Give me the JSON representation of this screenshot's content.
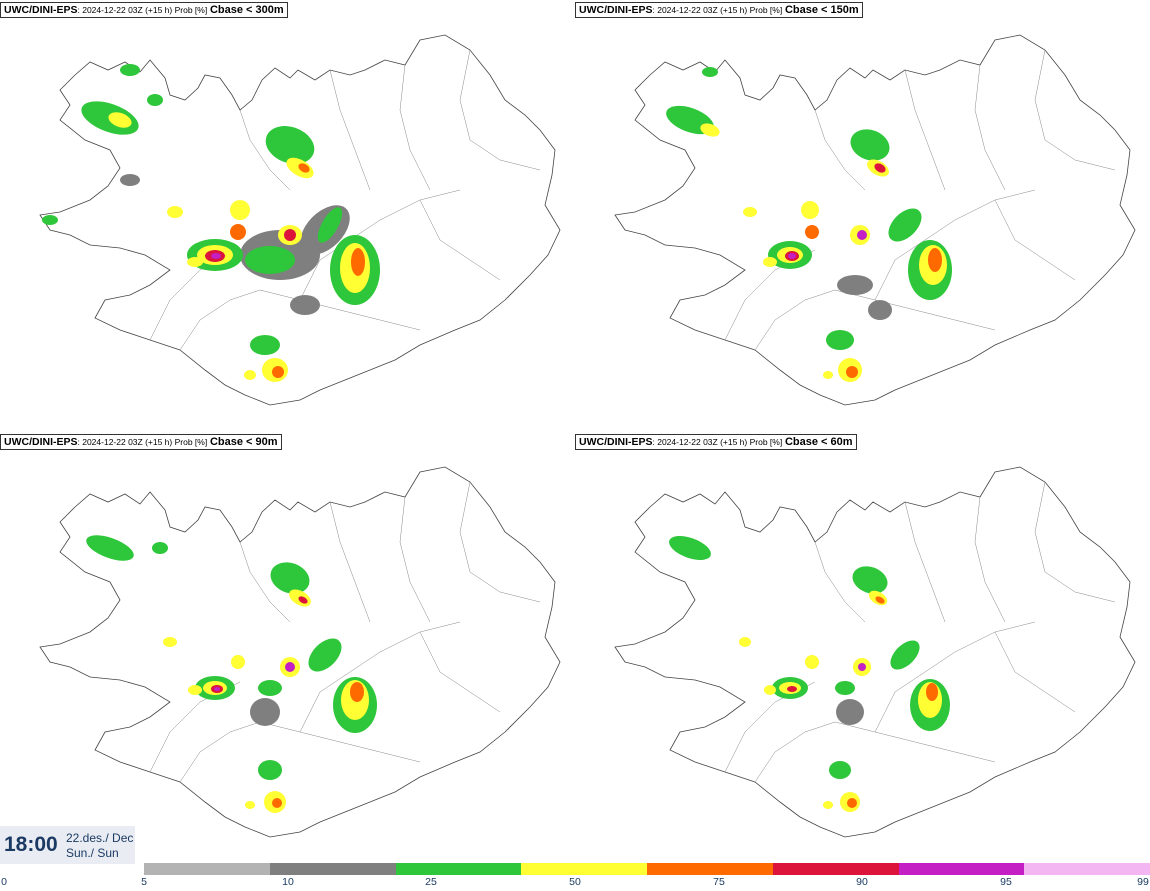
{
  "panels": [
    {
      "model": "UWC/DINI-EPS",
      "meta": ": 2024-12-22 03Z (+15 h) Prob [%]",
      "variable": "Cbase < 300m"
    },
    {
      "model": "UWC/DINI-EPS",
      "meta": ": 2024-12-22 03Z (+15 h) Prob [%]",
      "variable": "Cbase < 150m"
    },
    {
      "model": "UWC/DINI-EPS",
      "meta": ": 2024-12-22 03Z (+15 h) Prob [%]",
      "variable": "Cbase < 90m"
    },
    {
      "model": "UWC/DINI-EPS",
      "meta": ": 2024-12-22 03Z (+15 h) Prob [%]",
      "variable": "Cbase < 60m"
    }
  ],
  "timebox": {
    "time": "18:00",
    "date_line1": "22.des./ Dec",
    "date_line2": "Sun./ Sun"
  },
  "legend": {
    "ticks": [
      "0",
      "5",
      "10",
      "25",
      "50",
      "75",
      "90",
      "95",
      "99"
    ],
    "colors": [
      "#b3b3b3",
      "#7f7f7f",
      "#2ec63a",
      "#ffff33",
      "#ff6a00",
      "#dc143c",
      "#c31fc4",
      "#f4b6f2"
    ]
  }
}
